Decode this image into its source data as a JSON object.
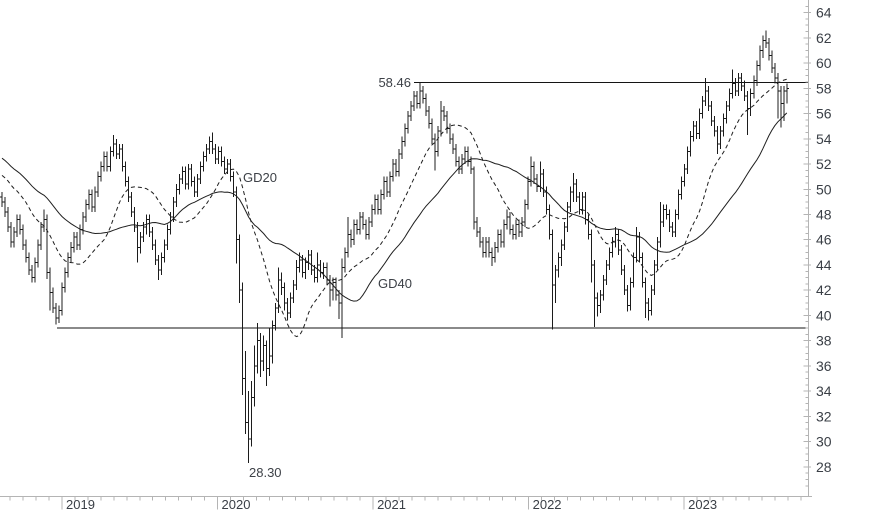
{
  "chart_data": {
    "type": "ohlc",
    "frequency": "weekly",
    "grid": false,
    "colors": {
      "bars": "#1c1c1c",
      "ma": "#1f1f1f",
      "levels": "#141414",
      "axis": "#b4b4b4",
      "text": "#3a3f46"
    },
    "x_axis": {
      "year_labels": [
        "2019",
        "2020",
        "2021",
        "2022",
        "2023"
      ]
    },
    "y_axis": {
      "side": "right",
      "min": 25.7,
      "max": 65.0,
      "label_step": 2,
      "minor_step": 0.5,
      "labels": [
        "64",
        "62",
        "60",
        "58",
        "56",
        "54",
        "52",
        "50",
        "48",
        "46",
        "44",
        "42",
        "40",
        "38",
        "36",
        "34",
        "32",
        "30",
        "28"
      ]
    },
    "horizontal_lines": [
      {
        "name": "resistance",
        "value": 58.46,
        "label": "58.46"
      },
      {
        "name": "support",
        "value": 39.0,
        "label": ""
      }
    ],
    "annotations": {
      "resistance_label": "58.46",
      "low_label": "28.30",
      "gd20_label": "GD20",
      "gd40_label": "GD40"
    },
    "moving_averages": [
      {
        "name": "GD20",
        "period": 20,
        "style": "dashed"
      },
      {
        "name": "GD40",
        "period": 40,
        "style": "solid"
      }
    ],
    "first_open": 49.4,
    "prior_closes_for_ma": [
      55.2,
      55.6,
      56.0,
      55.4,
      55.0,
      54.6,
      54.2,
      54.8,
      54.4,
      54.0,
      53.6,
      53.2,
      53.8,
      53.4,
      53.0,
      52.6,
      53.2,
      52.8,
      52.4,
      52.0,
      52.6,
      52.2,
      51.8,
      52.4,
      52.0,
      51.6,
      52.2,
      51.8,
      51.4,
      52.0,
      51.6,
      51.2,
      50.8,
      51.4,
      51.0,
      50.6,
      50.2,
      49.8,
      49.6,
      49.4
    ],
    "bars_hlc": [
      [
        49.8,
        48.6,
        49.0
      ],
      [
        49.4,
        47.8,
        48.2
      ],
      [
        48.6,
        46.6,
        47.0
      ],
      [
        47.4,
        45.4,
        45.8
      ],
      [
        47.0,
        45.4,
        46.6
      ],
      [
        48.0,
        46.2,
        47.6
      ],
      [
        48.0,
        46.4,
        46.8
      ],
      [
        47.2,
        45.2,
        45.6
      ],
      [
        46.0,
        44.2,
        44.6
      ],
      [
        45.0,
        43.2,
        43.6
      ],
      [
        44.0,
        42.6,
        43.0
      ],
      [
        44.6,
        42.6,
        44.2
      ],
      [
        46.0,
        43.8,
        45.6
      ],
      [
        47.4,
        45.2,
        47.0
      ],
      [
        48.4,
        46.6,
        47.6
      ],
      [
        48.0,
        42.9,
        43.4
      ],
      [
        43.8,
        40.4,
        41.8
      ],
      [
        42.2,
        40.2,
        40.6
      ],
      [
        41.0,
        39.3,
        39.8
      ],
      [
        40.8,
        39.4,
        40.4
      ],
      [
        42.6,
        40.0,
        42.2
      ],
      [
        43.8,
        41.8,
        43.4
      ],
      [
        45.0,
        43.0,
        44.6
      ],
      [
        45.8,
        44.2,
        45.4
      ],
      [
        46.6,
        45.0,
        46.2
      ],
      [
        46.6,
        45.2,
        45.6
      ],
      [
        47.2,
        45.2,
        46.8
      ],
      [
        48.2,
        46.4,
        47.8
      ],
      [
        49.2,
        47.4,
        48.8
      ],
      [
        50.0,
        48.4,
        49.6
      ],
      [
        50.0,
        48.2,
        48.6
      ],
      [
        50.2,
        48.2,
        49.8
      ],
      [
        51.4,
        49.4,
        51.0
      ],
      [
        52.2,
        50.6,
        51.8
      ],
      [
        53.0,
        51.4,
        52.6
      ],
      [
        53.0,
        51.4,
        51.8
      ],
      [
        53.4,
        51.4,
        53.0
      ],
      [
        54.3,
        52.6,
        53.6
      ],
      [
        54.0,
        52.4,
        52.8
      ],
      [
        53.6,
        52.4,
        53.2
      ],
      [
        53.6,
        51.4,
        51.8
      ],
      [
        52.2,
        50.2,
        50.6
      ],
      [
        51.0,
        49.0,
        49.4
      ],
      [
        49.8,
        47.8,
        48.2
      ],
      [
        48.6,
        46.6,
        47.0
      ],
      [
        47.4,
        44.2,
        45.4
      ],
      [
        46.6,
        44.9,
        46.2
      ],
      [
        47.4,
        45.8,
        47.0
      ],
      [
        48.0,
        46.4,
        47.6
      ],
      [
        48.0,
        46.2,
        46.6
      ],
      [
        47.0,
        45.2,
        45.6
      ],
      [
        46.0,
        44.0,
        44.4
      ],
      [
        44.8,
        42.8,
        43.6
      ],
      [
        45.0,
        43.2,
        44.6
      ],
      [
        46.0,
        44.2,
        45.6
      ],
      [
        47.2,
        45.2,
        46.8
      ],
      [
        48.2,
        46.4,
        47.8
      ],
      [
        49.4,
        47.4,
        49.0
      ],
      [
        50.4,
        48.6,
        50.0
      ],
      [
        51.2,
        49.6,
        50.8
      ],
      [
        51.8,
        50.4,
        51.4
      ],
      [
        51.8,
        50.0,
        50.4
      ],
      [
        52.0,
        50.0,
        51.6
      ],
      [
        52.0,
        50.2,
        50.6
      ],
      [
        51.0,
        49.4,
        49.8
      ],
      [
        51.2,
        49.4,
        50.8
      ],
      [
        52.2,
        50.4,
        51.8
      ],
      [
        53.0,
        51.4,
        52.6
      ],
      [
        53.6,
        52.2,
        53.2
      ],
      [
        54.2,
        52.8,
        53.8
      ],
      [
        54.5,
        52.8,
        53.2
      ],
      [
        53.6,
        52.0,
        52.4
      ],
      [
        53.4,
        52.0,
        53.0
      ],
      [
        53.4,
        51.8,
        52.2
      ],
      [
        52.6,
        51.2,
        51.6
      ],
      [
        52.4,
        51.2,
        52.0
      ],
      [
        52.4,
        50.6,
        51.0
      ],
      [
        51.4,
        49.4,
        49.8
      ],
      [
        50.2,
        44.1,
        46.0
      ],
      [
        46.4,
        41.0,
        42.0
      ],
      [
        42.6,
        33.7,
        35.0
      ],
      [
        37.2,
        30.6,
        31.5
      ],
      [
        34.0,
        28.3,
        30.2
      ],
      [
        34.8,
        29.6,
        33.5
      ],
      [
        37.6,
        32.8,
        36.0
      ],
      [
        39.4,
        35.4,
        38.0
      ],
      [
        38.6,
        35.1,
        36.4
      ],
      [
        38.4,
        35.6,
        37.6
      ],
      [
        38.0,
        34.4,
        35.8
      ],
      [
        39.0,
        35.2,
        36.8
      ],
      [
        39.6,
        36.2,
        39.2
      ],
      [
        41.0,
        38.8,
        40.6
      ],
      [
        43.8,
        40.2,
        42.8
      ],
      [
        43.4,
        41.6,
        42.2
      ],
      [
        42.6,
        40.4,
        41.0
      ],
      [
        41.4,
        39.6,
        40.2
      ],
      [
        41.8,
        39.8,
        41.4
      ],
      [
        42.8,
        41.0,
        42.4
      ],
      [
        44.4,
        42.0,
        43.8
      ],
      [
        45.0,
        43.4,
        44.4
      ],
      [
        44.8,
        43.0,
        43.4
      ],
      [
        44.6,
        42.9,
        44.2
      ],
      [
        45.2,
        43.6,
        44.8
      ],
      [
        45.2,
        43.2,
        43.6
      ],
      [
        44.0,
        42.6,
        43.0
      ],
      [
        45.0,
        42.6,
        44.0
      ],
      [
        44.4,
        43.0,
        43.4
      ],
      [
        44.2,
        42.9,
        43.8
      ],
      [
        44.2,
        42.4,
        42.8
      ],
      [
        43.2,
        40.7,
        42.0
      ],
      [
        43.0,
        41.2,
        42.6
      ],
      [
        43.0,
        41.2,
        41.6
      ],
      [
        42.0,
        39.7,
        41.0
      ],
      [
        44.5,
        38.2,
        43.8
      ],
      [
        45.4,
        43.4,
        45.0
      ],
      [
        47.8,
        44.6,
        46.4
      ],
      [
        46.8,
        45.4,
        46.0
      ],
      [
        47.6,
        45.6,
        47.2
      ],
      [
        47.6,
        46.4,
        46.8
      ],
      [
        48.2,
        46.4,
        47.8
      ],
      [
        48.2,
        46.8,
        47.2
      ],
      [
        47.6,
        46.0,
        46.4
      ],
      [
        47.8,
        46.0,
        47.4
      ],
      [
        48.8,
        47.0,
        48.4
      ],
      [
        49.6,
        48.0,
        49.2
      ],
      [
        49.6,
        48.0,
        48.4
      ],
      [
        50.0,
        48.0,
        49.6
      ],
      [
        51.0,
        49.2,
        50.6
      ],
      [
        51.0,
        49.4,
        49.8
      ],
      [
        51.4,
        49.4,
        51.0
      ],
      [
        52.4,
        50.6,
        52.0
      ],
      [
        52.4,
        51.0,
        51.4
      ],
      [
        53.2,
        51.0,
        52.8
      ],
      [
        54.2,
        52.4,
        53.8
      ],
      [
        55.2,
        53.4,
        54.8
      ],
      [
        56.2,
        54.4,
        55.8
      ],
      [
        57.0,
        55.4,
        56.6
      ],
      [
        57.8,
        56.2,
        57.4
      ],
      [
        57.8,
        56.4,
        56.8
      ],
      [
        58.46,
        56.4,
        57.8
      ],
      [
        58.2,
        56.8,
        57.2
      ],
      [
        57.6,
        55.8,
        56.2
      ],
      [
        56.6,
        54.8,
        55.2
      ],
      [
        55.6,
        53.6,
        54.0
      ],
      [
        54.4,
        51.5,
        53.0
      ],
      [
        55.0,
        52.6,
        54.6
      ],
      [
        57.0,
        54.2,
        56.2
      ],
      [
        56.6,
        55.4,
        55.8
      ],
      [
        56.2,
        54.4,
        54.8
      ],
      [
        55.2,
        53.6,
        54.0
      ],
      [
        54.4,
        52.8,
        53.2
      ],
      [
        53.6,
        51.8,
        52.2
      ],
      [
        52.6,
        51.2,
        51.6
      ],
      [
        52.8,
        51.2,
        52.4
      ],
      [
        53.4,
        52.0,
        53.0
      ],
      [
        53.4,
        51.8,
        52.2
      ],
      [
        52.6,
        51.2,
        51.6
      ],
      [
        51.8,
        46.8,
        47.4
      ],
      [
        47.8,
        46.2,
        46.6
      ],
      [
        47.0,
        45.4,
        45.8
      ],
      [
        46.2,
        44.6,
        45.0
      ],
      [
        46.2,
        44.6,
        45.8
      ],
      [
        46.2,
        44.6,
        45.0
      ],
      [
        45.4,
        43.9,
        44.6
      ],
      [
        45.8,
        44.2,
        45.4
      ],
      [
        46.8,
        45.0,
        46.4
      ],
      [
        46.8,
        45.4,
        45.8
      ],
      [
        47.6,
        45.4,
        47.2
      ],
      [
        48.4,
        46.8,
        47.8
      ],
      [
        48.2,
        46.4,
        46.8
      ],
      [
        47.2,
        46.0,
        46.4
      ],
      [
        47.6,
        46.0,
        47.2
      ],
      [
        47.6,
        46.2,
        46.6
      ],
      [
        47.8,
        46.2,
        47.4
      ],
      [
        49.2,
        47.0,
        48.8
      ],
      [
        51.0,
        48.4,
        50.6
      ],
      [
        52.6,
        50.2,
        51.8
      ],
      [
        52.2,
        50.4,
        50.8
      ],
      [
        51.2,
        49.8,
        50.2
      ],
      [
        52.2,
        49.8,
        51.2
      ],
      [
        51.6,
        49.4,
        49.8
      ],
      [
        50.2,
        48.0,
        48.4
      ],
      [
        48.8,
        46.0,
        46.4
      ],
      [
        46.8,
        38.9,
        42.4
      ],
      [
        44.0,
        41.0,
        43.6
      ],
      [
        45.0,
        43.0,
        44.6
      ],
      [
        46.0,
        43.9,
        45.6
      ],
      [
        47.4,
        45.2,
        47.0
      ],
      [
        49.0,
        46.6,
        48.6
      ],
      [
        50.2,
        48.2,
        49.8
      ],
      [
        51.3,
        49.0,
        50.4
      ],
      [
        50.8,
        49.0,
        49.4
      ],
      [
        49.8,
        48.0,
        48.4
      ],
      [
        49.8,
        48.0,
        49.4
      ],
      [
        49.8,
        47.2,
        47.6
      ],
      [
        48.0,
        46.0,
        46.4
      ],
      [
        46.8,
        42.6,
        44.0
      ],
      [
        44.4,
        39.1,
        41.4
      ],
      [
        41.8,
        39.9,
        40.8
      ],
      [
        42.0,
        40.2,
        41.6
      ],
      [
        43.2,
        41.2,
        42.8
      ],
      [
        44.4,
        42.4,
        44.0
      ],
      [
        45.4,
        43.6,
        45.0
      ],
      [
        46.2,
        44.6,
        45.8
      ],
      [
        47.0,
        45.4,
        46.4
      ],
      [
        46.8,
        44.8,
        45.2
      ],
      [
        45.6,
        43.2,
        43.6
      ],
      [
        44.0,
        41.6,
        42.0
      ],
      [
        42.4,
        40.3,
        40.8
      ],
      [
        43.0,
        40.4,
        42.6
      ],
      [
        45.0,
        42.2,
        44.6
      ],
      [
        47.0,
        44.2,
        46.2
      ],
      [
        46.6,
        44.2,
        44.6
      ],
      [
        45.0,
        42.2,
        42.6
      ],
      [
        43.0,
        39.8,
        41.0
      ],
      [
        41.4,
        39.6,
        40.4
      ],
      [
        42.4,
        40.0,
        42.0
      ],
      [
        44.4,
        41.6,
        44.0
      ],
      [
        46.2,
        43.6,
        45.8
      ],
      [
        49.0,
        45.4,
        47.4
      ],
      [
        48.8,
        47.0,
        48.4
      ],
      [
        48.8,
        47.6,
        48.0
      ],
      [
        48.4,
        46.6,
        47.0
      ],
      [
        47.4,
        46.2,
        46.6
      ],
      [
        48.4,
        46.2,
        48.0
      ],
      [
        50.0,
        47.6,
        49.6
      ],
      [
        51.0,
        49.2,
        50.6
      ],
      [
        52.0,
        50.2,
        51.6
      ],
      [
        53.4,
        51.2,
        53.0
      ],
      [
        54.6,
        52.6,
        54.2
      ],
      [
        55.4,
        53.8,
        55.0
      ],
      [
        55.4,
        54.0,
        54.4
      ],
      [
        56.4,
        54.0,
        56.0
      ],
      [
        57.4,
        55.6,
        57.0
      ],
      [
        58.8,
        56.6,
        57.8
      ],
      [
        58.2,
        56.2,
        56.6
      ],
      [
        57.0,
        55.0,
        55.4
      ],
      [
        55.8,
        54.2,
        54.6
      ],
      [
        55.0,
        52.8,
        53.6
      ],
      [
        55.0,
        53.2,
        54.6
      ],
      [
        56.0,
        54.2,
        55.6
      ],
      [
        57.0,
        55.2,
        56.6
      ],
      [
        58.0,
        56.2,
        57.6
      ],
      [
        59.5,
        57.2,
        58.4
      ],
      [
        58.8,
        57.4,
        57.8
      ],
      [
        59.2,
        57.4,
        58.8
      ],
      [
        59.2,
        57.8,
        58.2
      ],
      [
        58.6,
        57.0,
        57.4
      ],
      [
        57.8,
        54.3,
        56.4
      ],
      [
        58.0,
        55.8,
        57.6
      ],
      [
        59.0,
        57.2,
        58.6
      ],
      [
        60.2,
        58.2,
        59.8
      ],
      [
        61.4,
        59.4,
        61.0
      ],
      [
        62.2,
        60.4,
        61.8
      ],
      [
        62.6,
        61.2,
        61.6
      ],
      [
        62.0,
        60.2,
        60.6
      ],
      [
        61.0,
        59.2,
        59.6
      ],
      [
        60.0,
        58.4,
        58.8
      ],
      [
        59.2,
        55.6,
        57.8
      ],
      [
        58.2,
        54.9,
        56.8
      ],
      [
        58.2,
        55.4,
        57.8
      ],
      [
        58.4,
        56.8,
        58.0
      ]
    ]
  }
}
